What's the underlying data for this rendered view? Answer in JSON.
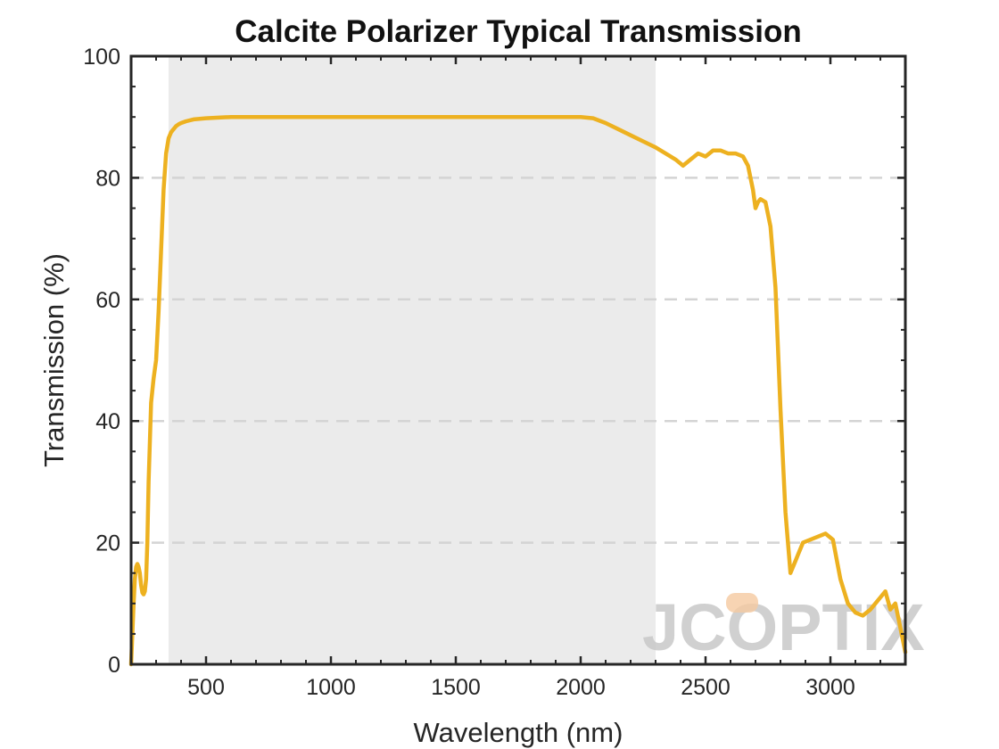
{
  "chart_data": {
    "type": "line",
    "title": "Calcite Polarizer Typical Transmission",
    "xlabel": "Wavelength (nm)",
    "ylabel": "Transmission (%)",
    "xlim": [
      200,
      3300
    ],
    "ylim": [
      0,
      100
    ],
    "x_ticks": [
      500,
      1000,
      1500,
      2000,
      2500,
      3000
    ],
    "y_ticks": [
      0,
      20,
      40,
      60,
      80,
      100
    ],
    "grid": "horizontal dashed at 20, 40, 60, 80",
    "shaded_region": {
      "x_start": 350,
      "x_end": 2300,
      "color": "#ebebeb"
    },
    "line_color": "#edb120",
    "series": [
      {
        "x": [
          200,
          205,
          210,
          215,
          220,
          225,
          230,
          235,
          240,
          245,
          250,
          255,
          260,
          265,
          270,
          280,
          290,
          300,
          310,
          320,
          330,
          340,
          350,
          360,
          370,
          380,
          390,
          400,
          420,
          450,
          500,
          550,
          600,
          700,
          800,
          1000,
          1500,
          1900,
          2000,
          2050,
          2100,
          2150,
          2200,
          2250,
          2300,
          2340,
          2380,
          2410,
          2440,
          2470,
          2500,
          2530,
          2560,
          2590,
          2620,
          2650,
          2670,
          2690,
          2700,
          2710,
          2720,
          2740,
          2760,
          2780,
          2800,
          2820,
          2840,
          2860,
          2870,
          2890,
          2920,
          2950,
          2980,
          3010,
          3040,
          3070,
          3100,
          3130,
          3160,
          3180,
          3200,
          3220,
          3240,
          3260,
          3270,
          3280,
          3290,
          3300
        ],
        "values": [
          0,
          5,
          10,
          14,
          16,
          16.5,
          16,
          15,
          13,
          11.8,
          11.5,
          12,
          14,
          20,
          30,
          43,
          47,
          50,
          58,
          68,
          78,
          84,
          86.5,
          87.5,
          88,
          88.5,
          88.8,
          89,
          89.3,
          89.6,
          89.8,
          89.9,
          90,
          90,
          90,
          90,
          90,
          90,
          90,
          89.8,
          89,
          88,
          87,
          86,
          85,
          84,
          83,
          82,
          83,
          84,
          83.5,
          84.5,
          84.5,
          84,
          84,
          83.5,
          82,
          78,
          75,
          76,
          76.5,
          76,
          72,
          62,
          42,
          25,
          15,
          17,
          18,
          20,
          20.5,
          21,
          21.5,
          20.5,
          14,
          10,
          8.5,
          8,
          9,
          10,
          11,
          12,
          9,
          10,
          8,
          6,
          4,
          2
        ]
      }
    ]
  },
  "watermark": {
    "text": "JCOPTIX",
    "color": "#c8c8c8",
    "accent_color": "#f5c9a0"
  }
}
